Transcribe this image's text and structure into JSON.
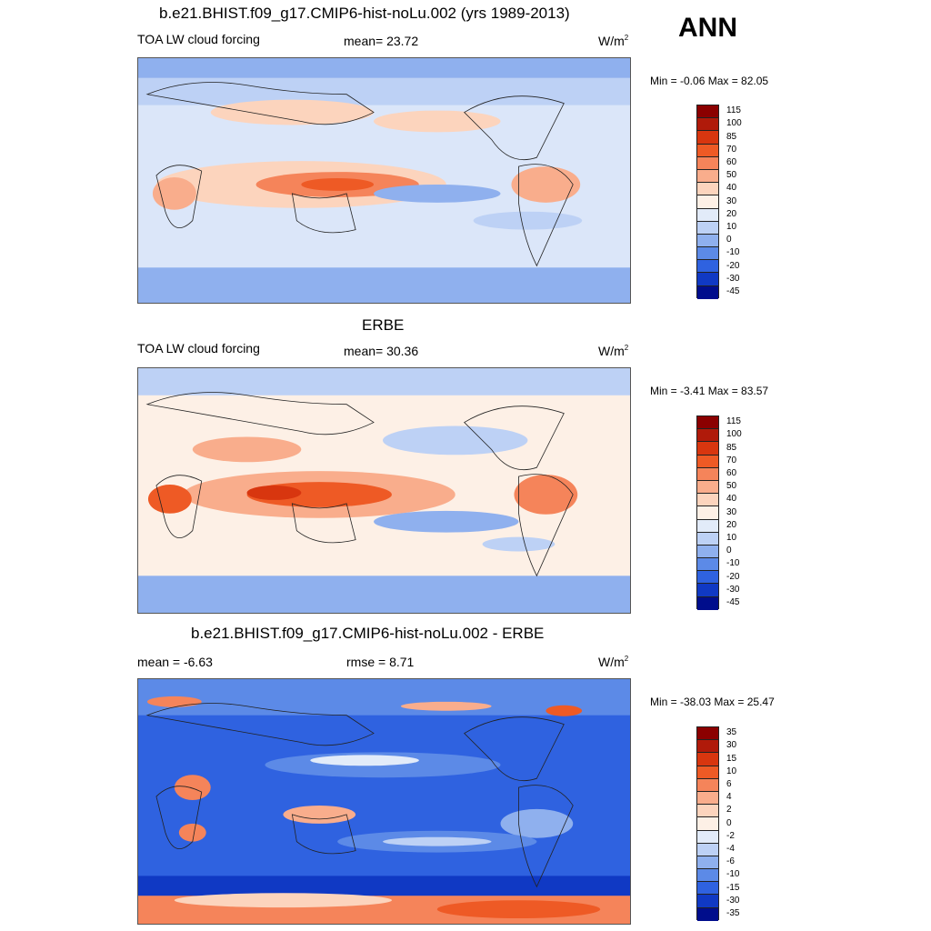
{
  "season": "ANN",
  "panels": [
    {
      "title": "b.e21.BHIST.f09_g17.CMIP6-hist-noLu.002 (yrs 1989-2013)",
      "left_label": "TOA LW cloud forcing",
      "center_label": "mean=  23.72",
      "units": "W/m",
      "units_sup": "2",
      "minmax": "Min =  -0.06 Max =  82.05",
      "colorbar_labels": [
        "115",
        "100",
        "85",
        "70",
        "60",
        "50",
        "40",
        "30",
        "20",
        "10",
        "0",
        "-10",
        "-20",
        "-30",
        "-45"
      ]
    },
    {
      "title": "ERBE",
      "left_label": "TOA LW cloud forcing",
      "center_label": "mean=  30.36",
      "units": "W/m",
      "units_sup": "2",
      "minmax": "Min =  -3.41 Max =  83.57",
      "colorbar_labels": [
        "115",
        "100",
        "85",
        "70",
        "60",
        "50",
        "40",
        "30",
        "20",
        "10",
        "0",
        "-10",
        "-20",
        "-30",
        "-45"
      ]
    },
    {
      "title": "b.e21.BHIST.f09_g17.CMIP6-hist-noLu.002 - ERBE",
      "left_label": "mean =  -6.63",
      "center_label": "rmse =   8.71",
      "units": "W/m",
      "units_sup": "2",
      "minmax": "Min = -38.03 Max =  25.47",
      "colorbar_labels": [
        "35",
        "30",
        "15",
        "10",
        "6",
        "4",
        "2",
        "0",
        "-2",
        "-4",
        "-6",
        "-10",
        "-15",
        "-30",
        "-35"
      ]
    }
  ],
  "colors": {
    "colorbar": [
      "#8b0000",
      "#b01a0a",
      "#d8360f",
      "#ee5a25",
      "#f5845a",
      "#f9ad8c",
      "#fcd4bd",
      "#fdf0e6",
      "#e2ebf9",
      "#bdd1f5",
      "#8fb0ee",
      "#5c8ae7",
      "#2f62e0",
      "#1039c4",
      "#000d8c"
    ]
  }
}
